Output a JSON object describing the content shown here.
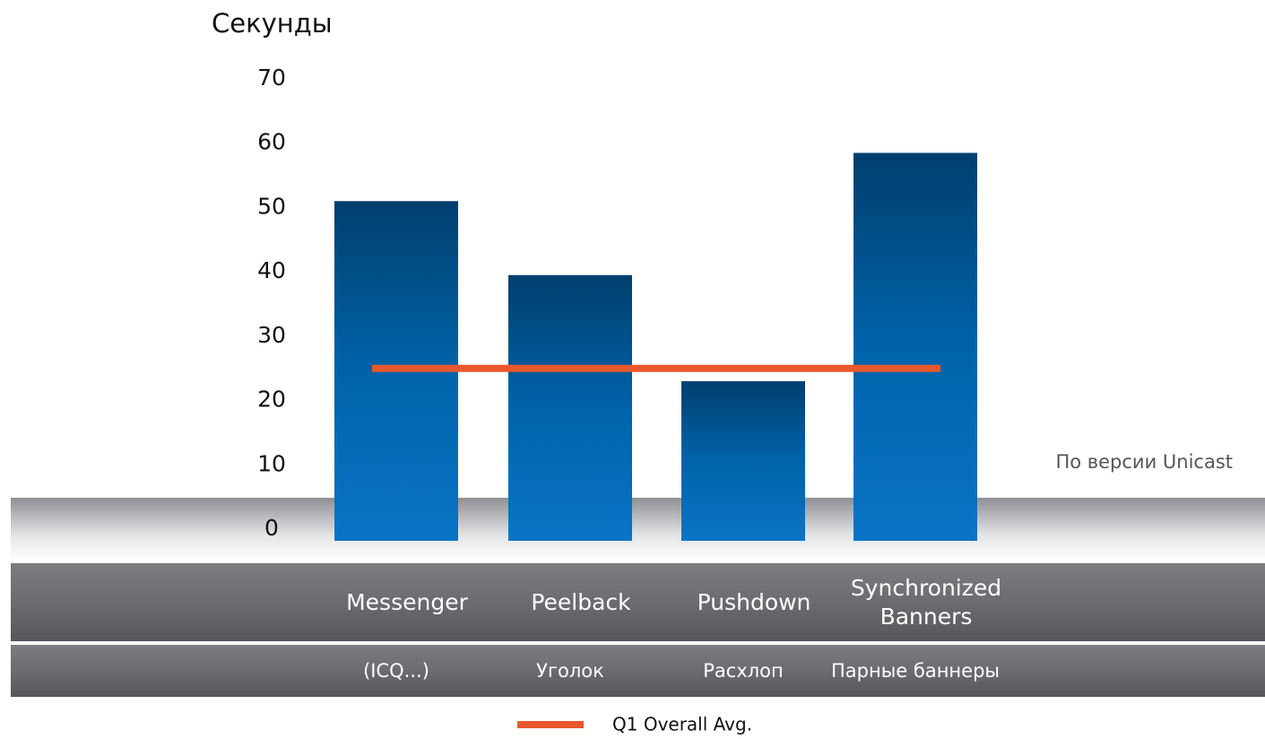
{
  "chart_data": {
    "type": "bar",
    "y_axis_label": "Секунды",
    "categories": [
      "Messenger",
      "Peelback",
      "Pushdown",
      "Synchronized Banners"
    ],
    "subcategories": [
      "(ICQ...)",
      "Уголок",
      "Расхлоп",
      "Парные баннеры"
    ],
    "values": [
      51,
      39.5,
      23,
      58.5
    ],
    "color": "#0a63aa",
    "average": {
      "name": "Q1 Overall Avg.",
      "value": 25,
      "color": "#e8582c"
    },
    "annotation": "По версии Unicast",
    "ylim": [
      0,
      70
    ],
    "yticks": [
      0,
      10,
      20,
      30,
      40,
      50,
      60,
      70
    ],
    "grid": false
  }
}
